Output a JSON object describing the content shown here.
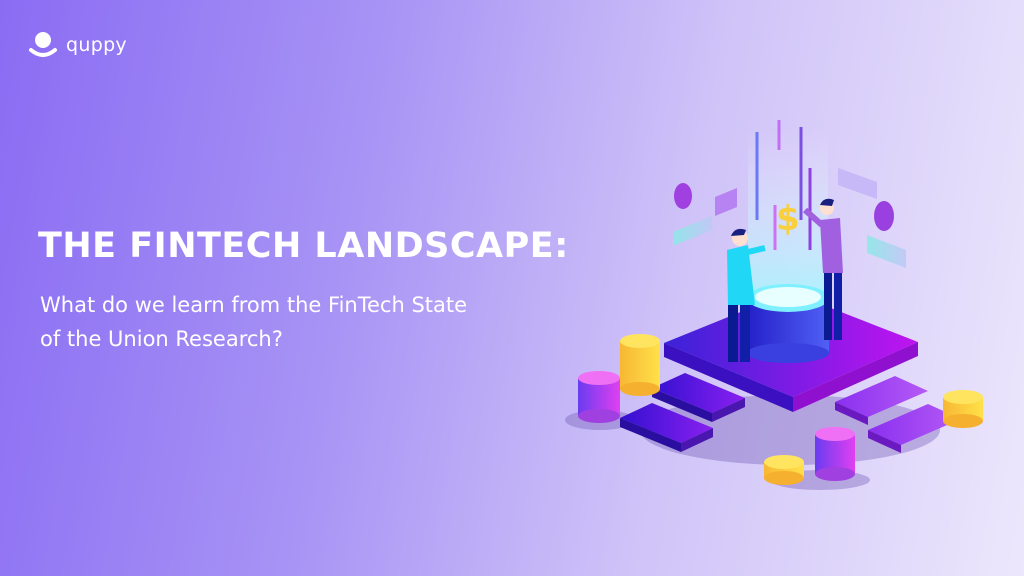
{
  "brand": {
    "name": "quppy",
    "logo_icon": "person-avatar-icon"
  },
  "headline": {
    "title": "THE FINTECH LANDSCAPE:",
    "subtitle_line1": "What do we learn from the FinTech State",
    "subtitle_line2": "of the Union Research?"
  },
  "illustration": {
    "dollar_sign": "$"
  },
  "colors": {
    "background_start": "#8a6cf3",
    "background_end": "#ece7fc",
    "platform": "#7a1ff0",
    "coin_gold": "#f9cf3c",
    "coin_purple": "#b14ef0",
    "cyan": "#35e3f0"
  }
}
